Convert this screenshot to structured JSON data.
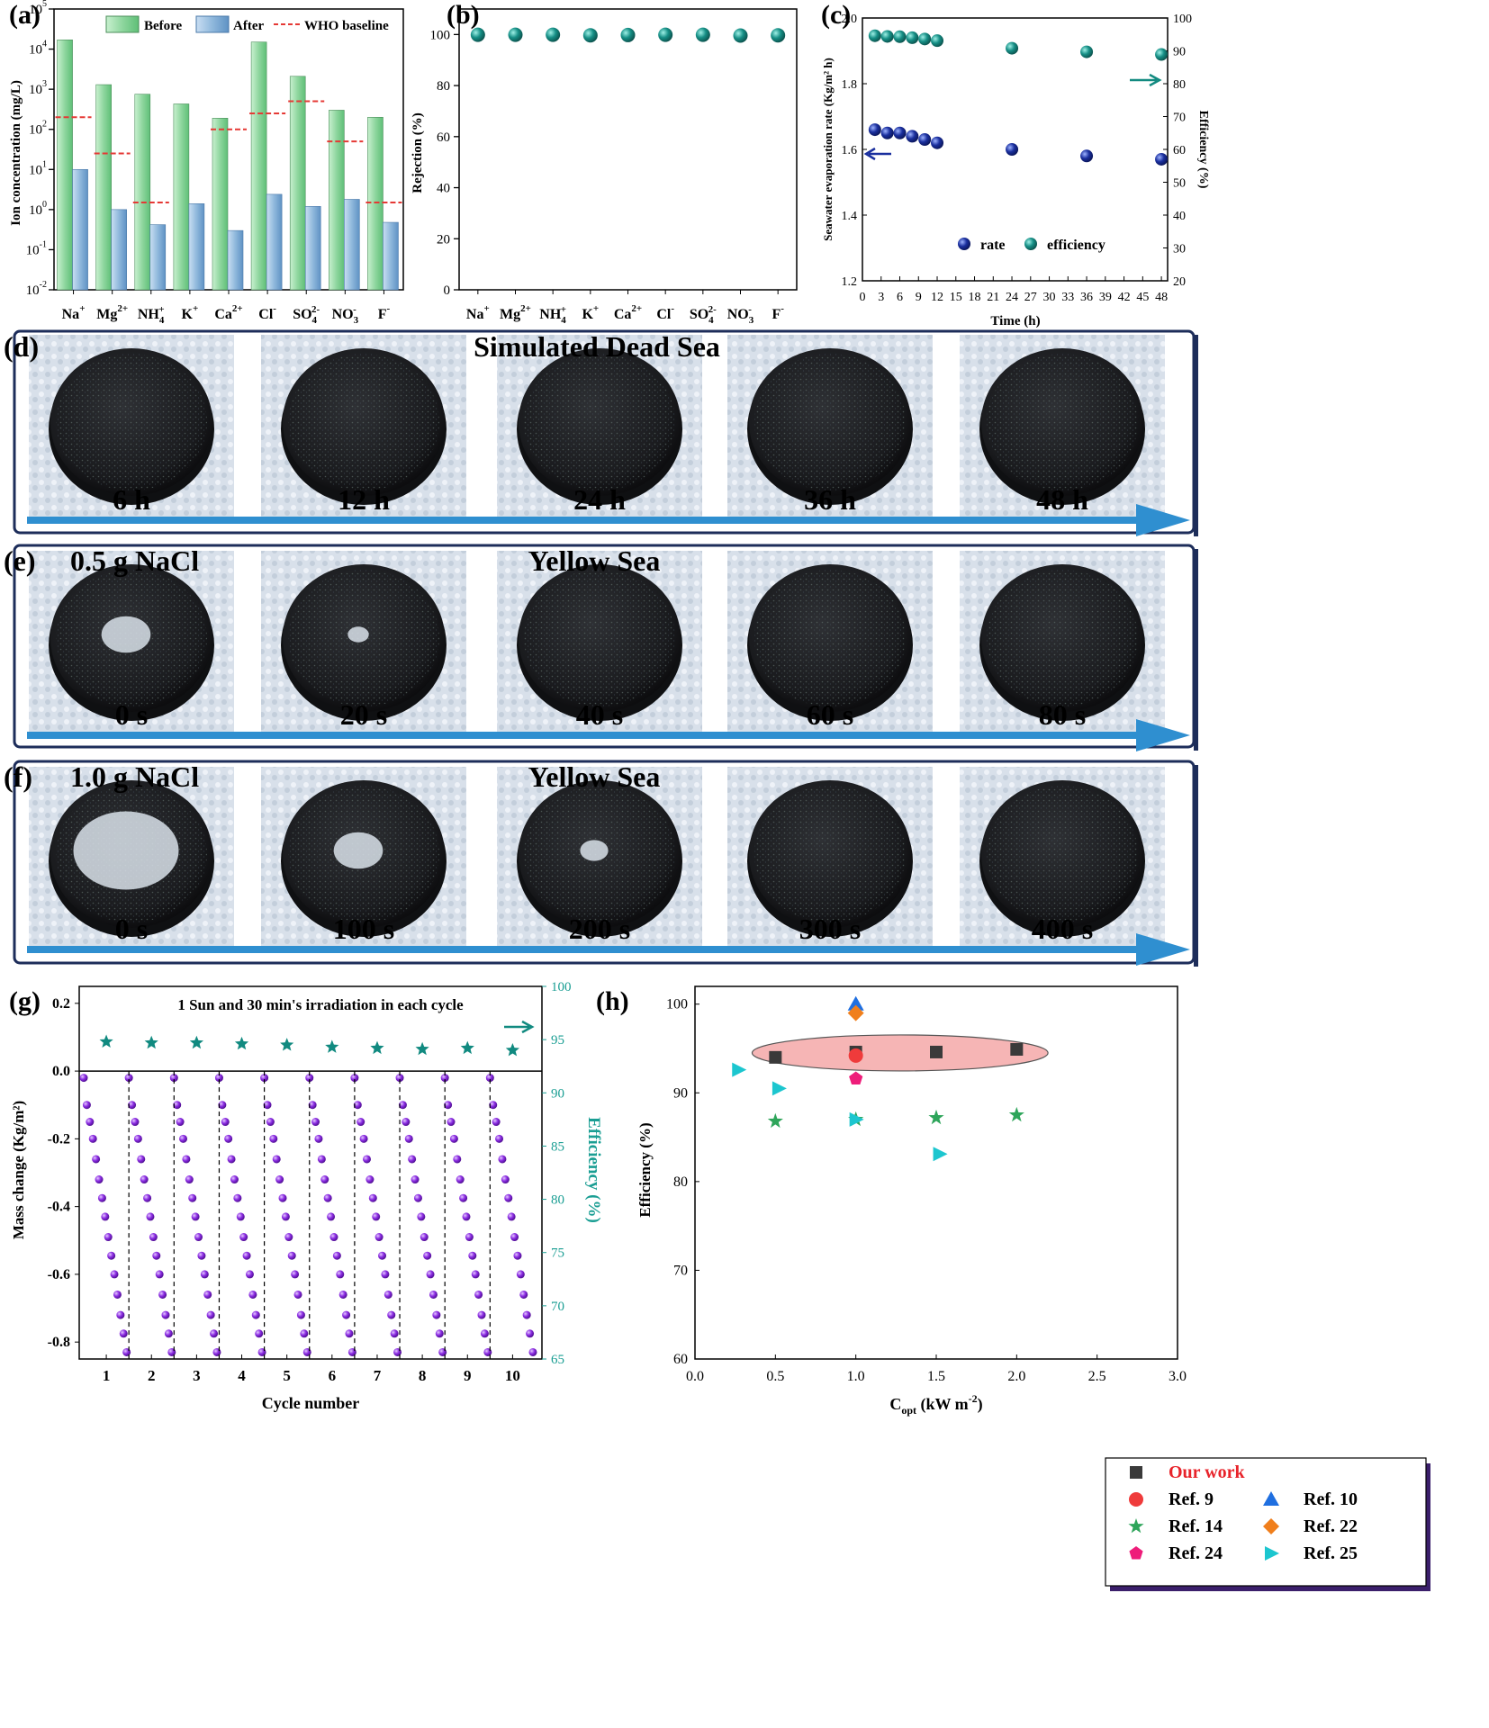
{
  "chart_data": [
    {
      "panel": "(a)",
      "type": "bar",
      "ylabel": "Ion concentration (mg/L)",
      "yscale": "log",
      "ylim": [
        0.01,
        100000
      ],
      "yticks": [
        "10",
        "10",
        "10",
        "10",
        "10",
        "10",
        "10",
        "10"
      ],
      "ytick_exps": [
        "-2",
        "-1",
        "0",
        "1",
        "2",
        "3",
        "4",
        "5"
      ],
      "categories": [
        {
          "base": "Na",
          "sup": "+",
          "sub": ""
        },
        {
          "base": "Mg",
          "sup": "2+",
          "sub": ""
        },
        {
          "base": "NH",
          "sup": "+",
          "sub": "4"
        },
        {
          "base": "K",
          "sup": "+",
          "sub": ""
        },
        {
          "base": "Ca",
          "sup": "2+",
          "sub": ""
        },
        {
          "base": "Cl",
          "sup": "-",
          "sub": ""
        },
        {
          "base": "SO",
          "sup": "2-",
          "sub": "4"
        },
        {
          "base": "NO",
          "sup": "-",
          "sub": "3"
        },
        {
          "base": "F",
          "sup": "-",
          "sub": ""
        }
      ],
      "series": [
        {
          "name": "Before",
          "color": "#8fd6a0",
          "values": [
            17000,
            1300,
            750,
            430,
            190,
            15000,
            2100,
            300,
            200
          ]
        },
        {
          "name": "After",
          "color": "#8fb8dc",
          "values": [
            10,
            1.0,
            0.42,
            1.4,
            0.3,
            2.4,
            1.2,
            1.8,
            0.48
          ]
        }
      ],
      "who_baseline": {
        "name": "WHO baseline",
        "color": "#e53935",
        "values": [
          200,
          25,
          1.5,
          null,
          100,
          250,
          500,
          50,
          1.5
        ]
      }
    },
    {
      "panel": "(b)",
      "type": "scatter",
      "ylabel": "Rejection (%)",
      "ylim": [
        0,
        110
      ],
      "yticks": [
        0,
        20,
        40,
        60,
        80,
        100
      ],
      "categories": [
        {
          "base": "Na",
          "sup": "+",
          "sub": ""
        },
        {
          "base": "Mg",
          "sup": "2+",
          "sub": ""
        },
        {
          "base": "NH",
          "sup": "+",
          "sub": "4"
        },
        {
          "base": "K",
          "sup": "+",
          "sub": ""
        },
        {
          "base": "Ca",
          "sup": "2+",
          "sub": ""
        },
        {
          "base": "Cl",
          "sup": "-",
          "sub": ""
        },
        {
          "base": "SO",
          "sup": "2-",
          "sub": "4"
        },
        {
          "base": "NO",
          "sup": "-",
          "sub": "3"
        },
        {
          "base": "F",
          "sup": "-",
          "sub": ""
        }
      ],
      "values": [
        99.9,
        99.9,
        99.9,
        99.7,
        99.8,
        99.9,
        99.9,
        99.6,
        99.7
      ],
      "color": "#0f8f86"
    },
    {
      "panel": "(c)",
      "type": "scatter",
      "xlabel": "Time (h)",
      "ylabel_left": "Seawater evaporation rate (Kg/m² h)",
      "ylabel_right": "Efficiency (%)",
      "xlim": [
        0,
        49
      ],
      "xticks": [
        0,
        3,
        6,
        9,
        12,
        15,
        18,
        21,
        24,
        27,
        30,
        33,
        36,
        39,
        42,
        45,
        48
      ],
      "ylim_left": [
        1.2,
        2.0
      ],
      "yticks_left": [
        "1.2",
        "1.4",
        "1.6",
        "1.8",
        "2.0"
      ],
      "ylim_right": [
        20,
        100
      ],
      "yticks_right": [
        20,
        30,
        40,
        50,
        60,
        70,
        80,
        90,
        100
      ],
      "legend": [
        "rate",
        "efficiency"
      ],
      "x": [
        2,
        4,
        6,
        8,
        10,
        12,
        24,
        36,
        48
      ],
      "rate": [
        1.66,
        1.65,
        1.65,
        1.64,
        1.63,
        1.62,
        1.6,
        1.58,
        1.57
      ],
      "efficiency": [
        94.6,
        94.4,
        94.3,
        94.0,
        93.6,
        93.1,
        90.8,
        89.7,
        88.9
      ],
      "rate_color": "#1a2f9e",
      "eff_color": "#128a80"
    },
    {
      "panel": "(g)",
      "type": "scatter",
      "title": "1 Sun and 30 min's irradiation in each cycle",
      "xlabel": "Cycle number",
      "ylabel_left": "Mass change (Kg/m²)",
      "ylabel_right": "Efficiency (%)",
      "xticks": [
        1,
        2,
        3,
        4,
        5,
        6,
        7,
        8,
        9,
        10
      ],
      "ylim_left": [
        -0.85,
        0.25
      ],
      "yticks_left": [
        "-0.8",
        "-0.6",
        "-0.4",
        "-0.2",
        "0.0",
        "0.2"
      ],
      "ylim_right": [
        65,
        100
      ],
      "yticks_right": [
        65,
        70,
        75,
        80,
        85,
        90,
        95,
        100
      ],
      "cycle_mass_profile": [
        -0.02,
        -0.1,
        -0.15,
        -0.2,
        -0.26,
        -0.32,
        -0.375,
        -0.43,
        -0.49,
        -0.545,
        -0.6,
        -0.66,
        -0.72,
        -0.775,
        -0.83
      ],
      "efficiency": [
        94.8,
        94.7,
        94.7,
        94.6,
        94.5,
        94.3,
        94.2,
        94.1,
        94.2,
        94.0
      ],
      "mass_color": "#8a2be2",
      "eff_color": "#118a80"
    },
    {
      "panel": "(h)",
      "type": "scatter",
      "xlabel": "C",
      "xlabel_sub": "opt",
      "xlabel_rest": " (kW m",
      "xlabel_sup": "-2",
      "xlabel_end": ")",
      "ylabel": "Efficiency (%)",
      "xlim": [
        0.0,
        3.0
      ],
      "xticks": [
        "0.0",
        "0.5",
        "1.0",
        "1.5",
        "2.0",
        "2.5",
        "3.0"
      ],
      "ylim": [
        60,
        102
      ],
      "yticks": [
        60,
        70,
        80,
        90,
        100
      ],
      "series": [
        {
          "name": "Our work",
          "marker": "square",
          "color": "#3a3a3a",
          "points": [
            [
              0.5,
              94.0
            ],
            [
              1.0,
              94.6
            ],
            [
              1.5,
              94.6
            ],
            [
              2.0,
              94.9
            ]
          ]
        },
        {
          "name": "Ref. 9",
          "marker": "circle",
          "color": "#ef3b3b",
          "points": [
            [
              1.0,
              94.2
            ]
          ]
        },
        {
          "name": "Ref. 10",
          "marker": "triangle-up",
          "color": "#1f6fe0",
          "points": [
            [
              1.0,
              100
            ]
          ]
        },
        {
          "name": "Ref. 14",
          "marker": "star",
          "color": "#2ea55a",
          "points": [
            [
              0.5,
              86.8
            ],
            [
              1.0,
              87.0
            ],
            [
              1.5,
              87.2
            ],
            [
              2.0,
              87.5
            ]
          ]
        },
        {
          "name": "Ref. 22",
          "marker": "diamond",
          "color": "#f07f1c",
          "points": [
            [
              1.0,
              99.0
            ]
          ]
        },
        {
          "name": "Ref. 24",
          "marker": "pentagon",
          "color": "#ee1d7a",
          "points": [
            [
              1.0,
              91.6
            ]
          ]
        },
        {
          "name": "Ref. 25",
          "marker": "triangle-right",
          "color": "#1cc6cf",
          "points": [
            [
              0.27,
              92.6
            ],
            [
              0.52,
              90.5
            ],
            [
              1.0,
              87.0
            ],
            [
              1.52,
              83.1
            ]
          ]
        }
      ],
      "highlight_color": "#f6b5b5"
    }
  ],
  "panels": {
    "a": "(a)",
    "b": "(b)",
    "c": "(c)",
    "d": "(d)",
    "e": "(e)",
    "f": "(f)",
    "g": "(g)",
    "h": "(h)"
  },
  "photo_rows": [
    {
      "panel": "(d)",
      "title": "Simulated Dead Sea",
      "left_title": "",
      "labels": [
        "6 h",
        "12 h",
        "24 h",
        "36 h",
        "48 h"
      ],
      "salt": [
        0,
        0,
        0,
        0,
        0
      ]
    },
    {
      "panel": "(e)",
      "title": "Yellow Sea",
      "left_title": "0.5 g NaCl",
      "labels": [
        "0 s",
        "20 s",
        "40 s",
        "60 s",
        "80 s"
      ],
      "salt": [
        0.35,
        0.15,
        0,
        0,
        0
      ]
    },
    {
      "panel": "(f)",
      "title": "Yellow Sea",
      "left_title": "1.0 g NaCl",
      "labels": [
        "0 s",
        "100 s",
        "200 s",
        "300 s",
        "400 s"
      ],
      "salt": [
        0.75,
        0.35,
        0.2,
        0,
        0
      ]
    }
  ]
}
